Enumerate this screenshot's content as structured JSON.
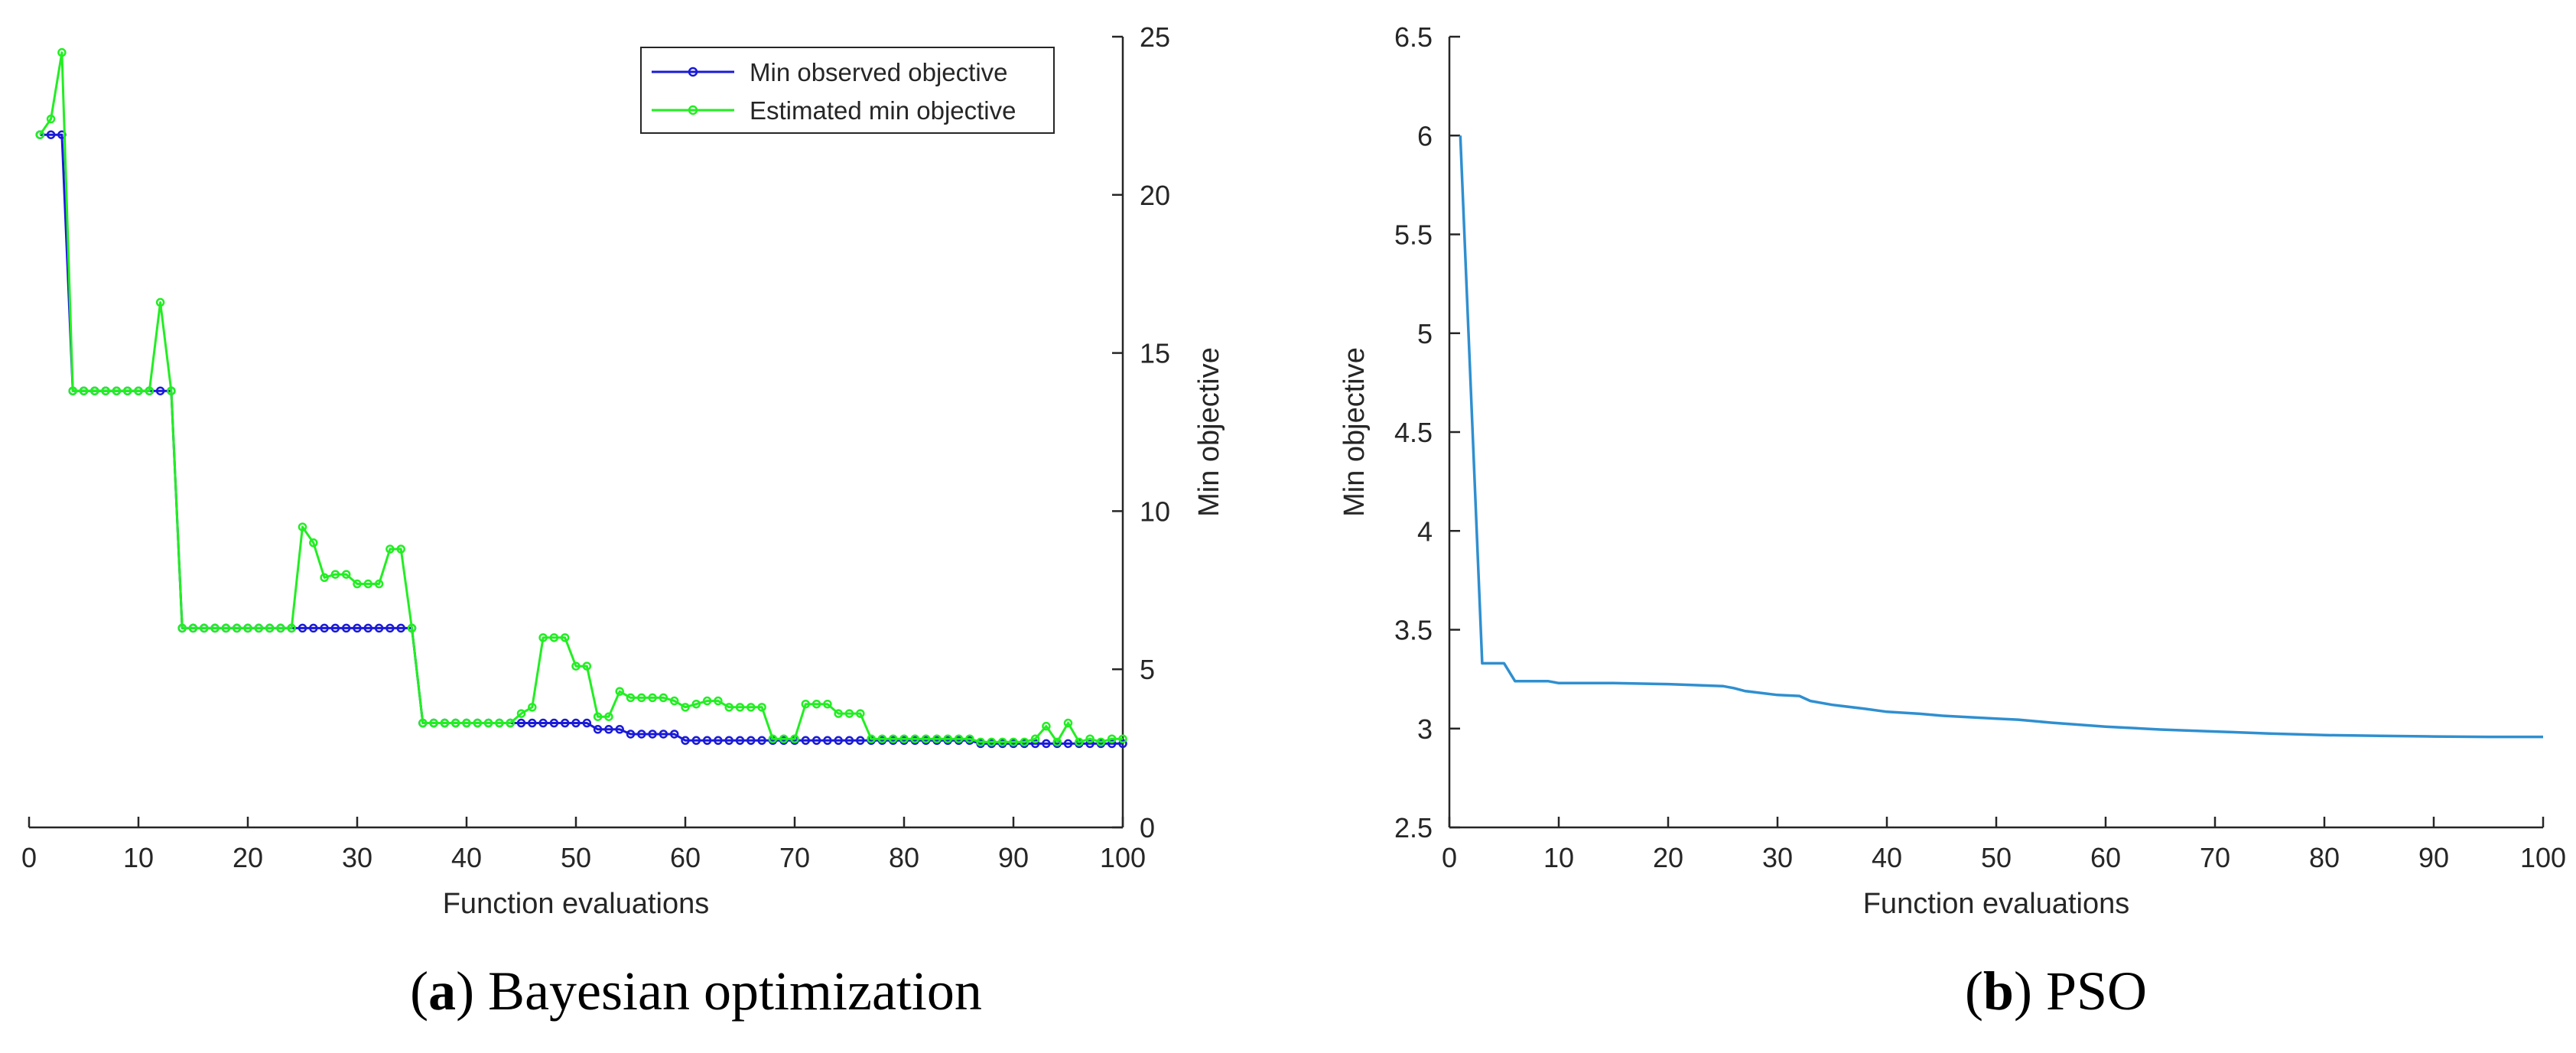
{
  "colors": {
    "blue": "#1a1ad8",
    "green": "#22ee22",
    "pso_line": "#2f8fd0",
    "axis": "#262626"
  },
  "captions": {
    "a_letter": "a",
    "a_text": "Bayesian optimization",
    "b_letter": "b",
    "b_text": "PSO"
  },
  "chart_data": [
    {
      "id": "a",
      "type": "line",
      "xlabel": "Function evaluations",
      "ylabel": "Min objective",
      "xlim": [
        0,
        100
      ],
      "ylim": [
        0,
        25
      ],
      "xticks": [
        0,
        10,
        20,
        30,
        40,
        50,
        60,
        70,
        80,
        90,
        100
      ],
      "yticks": [
        0,
        5,
        10,
        15,
        20,
        25
      ],
      "legend_position": "top-right",
      "series": [
        {
          "name": "Min observed objective",
          "color_key": "blue",
          "x": [
            1,
            2,
            3,
            4,
            5,
            6,
            7,
            8,
            9,
            10,
            11,
            12,
            13,
            14,
            15,
            16,
            17,
            18,
            19,
            20,
            21,
            22,
            23,
            24,
            25,
            26,
            27,
            28,
            29,
            30,
            31,
            32,
            33,
            34,
            35,
            36,
            37,
            38,
            39,
            40,
            41,
            42,
            43,
            44,
            45,
            46,
            47,
            48,
            49,
            50,
            51,
            52,
            53,
            54,
            55,
            56,
            57,
            58,
            59,
            60,
            61,
            62,
            63,
            64,
            65,
            66,
            67,
            68,
            69,
            70,
            71,
            72,
            73,
            74,
            75,
            76,
            77,
            78,
            79,
            80,
            81,
            82,
            83,
            84,
            85,
            86,
            87,
            88,
            89,
            90,
            91,
            92,
            93,
            94,
            95,
            96,
            97,
            98,
            99,
            100
          ],
          "values": [
            21.9,
            21.9,
            21.9,
            13.8,
            13.8,
            13.8,
            13.8,
            13.8,
            13.8,
            13.8,
            13.8,
            13.8,
            13.8,
            6.3,
            6.3,
            6.3,
            6.3,
            6.3,
            6.3,
            6.3,
            6.3,
            6.3,
            6.3,
            6.3,
            6.3,
            6.3,
            6.3,
            6.3,
            6.3,
            6.3,
            6.3,
            6.3,
            6.3,
            6.3,
            6.3,
            3.3,
            3.3,
            3.3,
            3.3,
            3.3,
            3.3,
            3.3,
            3.3,
            3.3,
            3.3,
            3.3,
            3.3,
            3.3,
            3.3,
            3.3,
            3.3,
            3.1,
            3.1,
            3.1,
            2.95,
            2.95,
            2.95,
            2.95,
            2.95,
            2.75,
            2.75,
            2.75,
            2.75,
            2.75,
            2.75,
            2.75,
            2.75,
            2.75,
            2.75,
            2.75,
            2.75,
            2.75,
            2.75,
            2.75,
            2.75,
            2.75,
            2.75,
            2.75,
            2.75,
            2.75,
            2.75,
            2.75,
            2.75,
            2.75,
            2.75,
            2.75,
            2.65,
            2.65,
            2.65,
            2.65,
            2.65,
            2.65,
            2.65,
            2.65,
            2.65,
            2.65,
            2.65,
            2.65,
            2.65,
            2.65
          ]
        },
        {
          "name": "Estimated min objective",
          "color_key": "green",
          "x": [
            1,
            2,
            3,
            4,
            5,
            6,
            7,
            8,
            9,
            10,
            11,
            12,
            13,
            14,
            15,
            16,
            17,
            18,
            19,
            20,
            21,
            22,
            23,
            24,
            25,
            26,
            27,
            28,
            29,
            30,
            31,
            32,
            33,
            34,
            35,
            36,
            37,
            38,
            39,
            40,
            41,
            42,
            43,
            44,
            45,
            46,
            47,
            48,
            49,
            50,
            51,
            52,
            53,
            54,
            55,
            56,
            57,
            58,
            59,
            60,
            61,
            62,
            63,
            64,
            65,
            66,
            67,
            68,
            69,
            70,
            71,
            72,
            73,
            74,
            75,
            76,
            77,
            78,
            79,
            80,
            81,
            82,
            83,
            84,
            85,
            86,
            87,
            88,
            89,
            90,
            91,
            92,
            93,
            94,
            95,
            96,
            97,
            98,
            99,
            100
          ],
          "values": [
            21.9,
            22.4,
            24.5,
            13.8,
            13.8,
            13.8,
            13.8,
            13.8,
            13.8,
            13.8,
            13.8,
            16.6,
            13.8,
            6.3,
            6.3,
            6.3,
            6.3,
            6.3,
            6.3,
            6.3,
            6.3,
            6.3,
            6.3,
            6.3,
            9.5,
            9.0,
            7.9,
            8.0,
            8.0,
            7.7,
            7.7,
            7.7,
            8.8,
            8.8,
            6.3,
            3.3,
            3.3,
            3.3,
            3.3,
            3.3,
            3.3,
            3.3,
            3.3,
            3.3,
            3.6,
            3.8,
            6.0,
            6.0,
            6.0,
            5.1,
            5.1,
            3.5,
            3.5,
            4.3,
            4.1,
            4.1,
            4.1,
            4.1,
            4.0,
            3.8,
            3.9,
            4.0,
            4.0,
            3.8,
            3.8,
            3.8,
            3.8,
            2.8,
            2.8,
            2.8,
            3.9,
            3.9,
            3.9,
            3.6,
            3.6,
            3.6,
            2.8,
            2.8,
            2.8,
            2.8,
            2.8,
            2.8,
            2.8,
            2.8,
            2.8,
            2.8,
            2.7,
            2.7,
            2.7,
            2.7,
            2.7,
            2.8,
            3.2,
            2.7,
            3.3,
            2.7,
            2.8,
            2.7,
            2.8,
            2.8
          ]
        }
      ]
    },
    {
      "id": "b",
      "type": "line",
      "xlabel": "Function evaluations",
      "ylabel": "Min objective",
      "xlim": [
        0,
        100
      ],
      "ylim": [
        2.5,
        6.5
      ],
      "xticks": [
        0,
        10,
        20,
        30,
        40,
        50,
        60,
        70,
        80,
        90,
        100
      ],
      "yticks": [
        2.5,
        3,
        3.5,
        4,
        4.5,
        5,
        5.5,
        6,
        6.5
      ],
      "ytick_labels": [
        "2.5",
        "3",
        "3.5",
        "4",
        "4.5",
        "5",
        "5.5",
        "6",
        "6.5"
      ],
      "series": [
        {
          "name": "Min objective",
          "color_key": "pso_line",
          "x": [
            1,
            3,
            4,
            5,
            6,
            8,
            9,
            10,
            15,
            20,
            25,
            26,
            27,
            30,
            32,
            33,
            35,
            38,
            40,
            43,
            45,
            50,
            52,
            55,
            60,
            65,
            70,
            75,
            80,
            85,
            90,
            95,
            100
          ],
          "values": [
            6.0,
            3.33,
            3.33,
            3.33,
            3.24,
            3.24,
            3.24,
            3.23,
            3.23,
            3.225,
            3.215,
            3.205,
            3.19,
            3.17,
            3.165,
            3.14,
            3.12,
            3.1,
            3.085,
            3.075,
            3.065,
            3.05,
            3.045,
            3.03,
            3.01,
            2.995,
            2.985,
            2.975,
            2.967,
            2.963,
            2.96,
            2.958,
            2.958
          ]
        }
      ]
    }
  ]
}
